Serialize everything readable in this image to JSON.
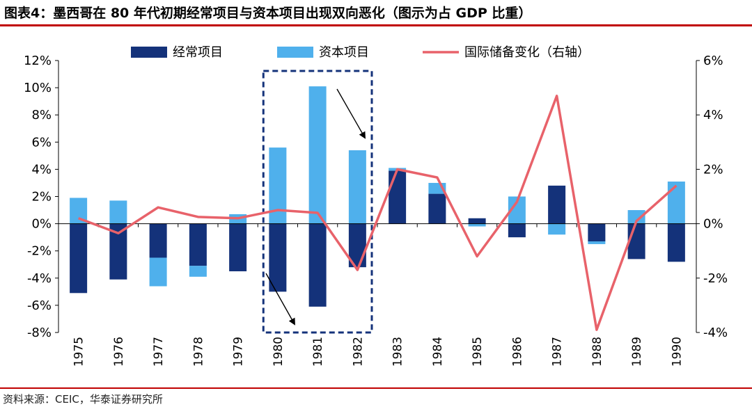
{
  "title": "图表4：墨西哥在 80 年代初期经常项目与资本项目出现双向恶化（图示为占 GDP 比重）",
  "source": "资料来源：CEIC，华泰证券研究所",
  "colors": {
    "current_account": "#14327a",
    "capital_account": "#4fb0ec",
    "reserves": "#e8626a",
    "title_rule": "#c00000",
    "highlight_box": "#14327a"
  },
  "chart_data": {
    "type": "bar",
    "subtype": "stacked bar with line on secondary axis",
    "categories": [
      "1975",
      "1976",
      "1977",
      "1978",
      "1979",
      "1980",
      "1981",
      "1982",
      "1983",
      "1984",
      "1985",
      "1986",
      "1987",
      "1988",
      "1989",
      "1990"
    ],
    "series": [
      {
        "name": "经常项目",
        "type": "bar",
        "axis": "left",
        "values": [
          -5.1,
          -4.1,
          -2.5,
          -3.1,
          -3.5,
          -5.0,
          -6.1,
          -3.2,
          3.9,
          2.2,
          0.4,
          -1.0,
          2.8,
          -1.3,
          -2.6,
          -2.8
        ]
      },
      {
        "name": "资本项目",
        "type": "bar",
        "axis": "left",
        "values": [
          1.9,
          1.7,
          -2.1,
          -0.8,
          0.7,
          5.6,
          10.1,
          5.4,
          0.2,
          0.8,
          -0.2,
          2.0,
          -0.8,
          -0.2,
          1.0,
          3.1
        ]
      },
      {
        "name": "国际储备变化（右轴）",
        "type": "line",
        "axis": "right",
        "values": [
          0.2,
          -0.35,
          0.6,
          0.25,
          0.2,
          0.5,
          0.4,
          -1.7,
          2.0,
          1.7,
          -1.2,
          0.8,
          4.7,
          -3.9,
          0.1,
          1.4
        ]
      }
    ],
    "y_left": {
      "min": -8,
      "max": 12,
      "ticks": [
        "-8%",
        "-6%",
        "-4%",
        "-2%",
        "0%",
        "2%",
        "4%",
        "6%",
        "8%",
        "10%",
        "12%"
      ]
    },
    "y_right": {
      "min": -4,
      "max": 6,
      "ticks": [
        "-4%",
        "-2%",
        "0%",
        "2%",
        "4%",
        "6%"
      ]
    },
    "legend_position": "top",
    "grid": false,
    "highlight": {
      "from": "1980",
      "to": "1982",
      "style": "dashed box with arrows"
    }
  }
}
